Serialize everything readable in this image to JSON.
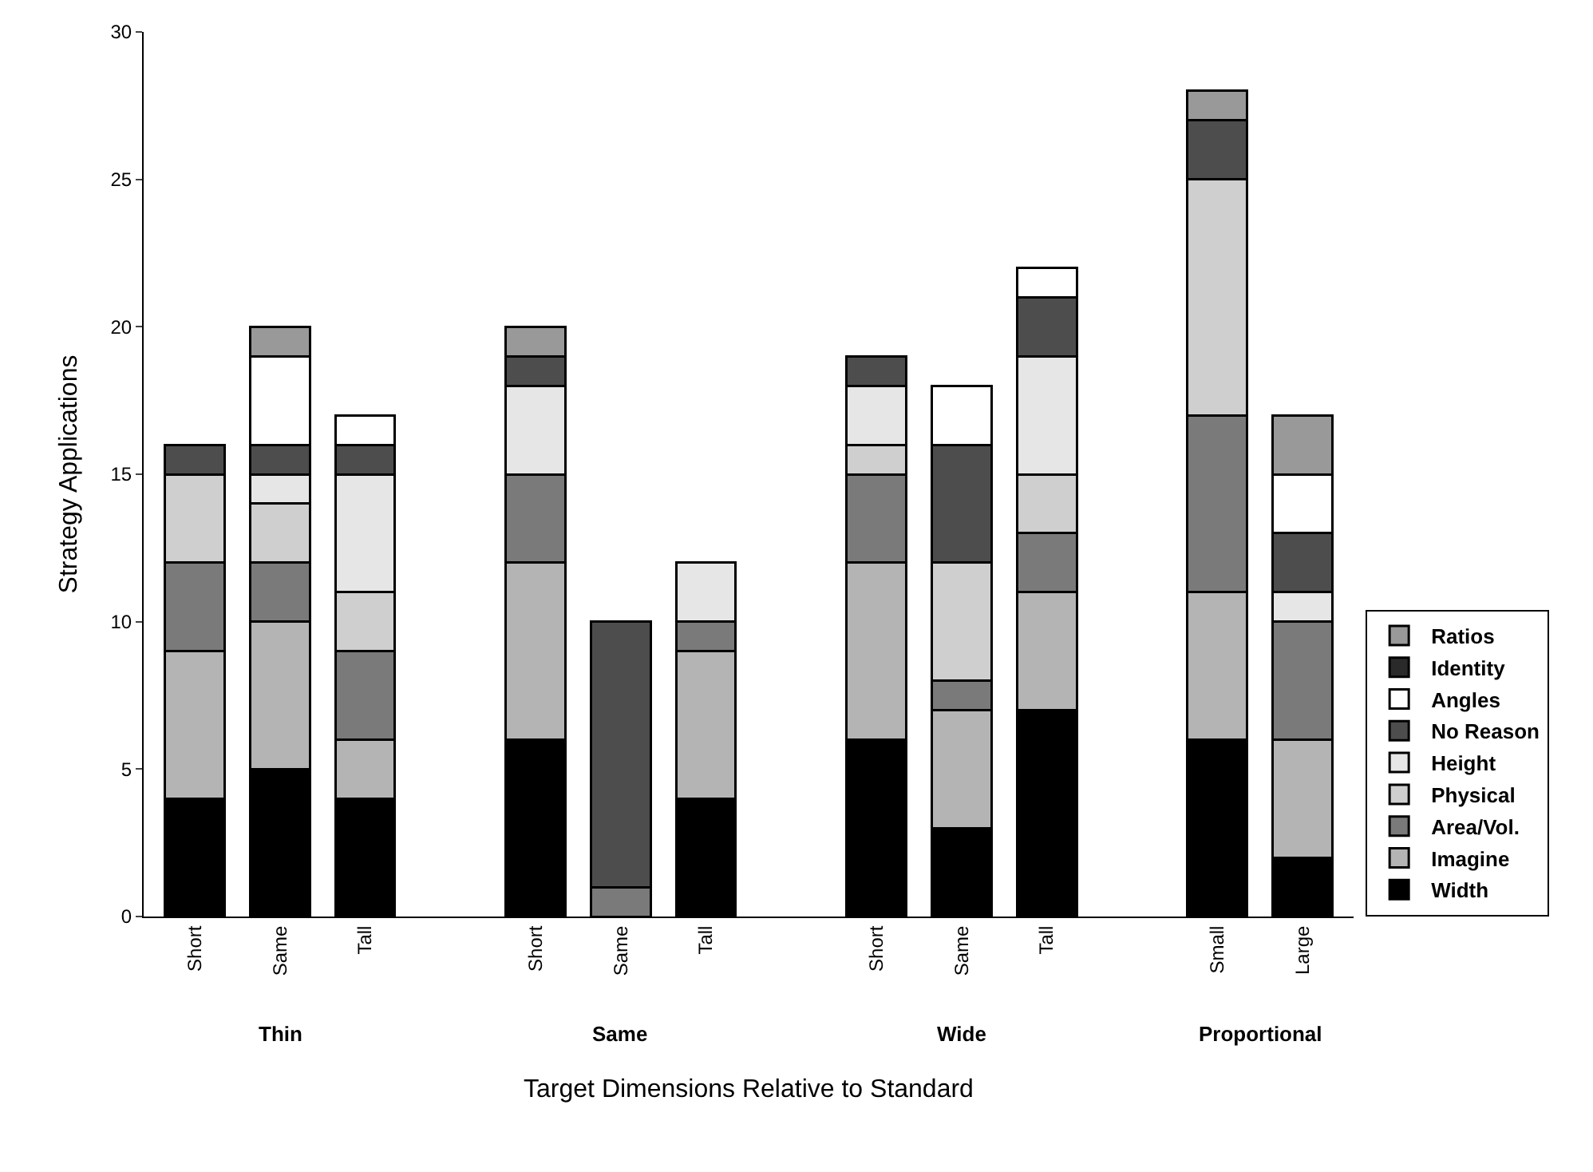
{
  "chart_data": {
    "type": "bar",
    "stacked": true,
    "ylabel": "Strategy Applications",
    "xlabel": "Target Dimensions Relative to Standard",
    "categories": [
      "Short",
      "Same",
      "Tall",
      null,
      "Short",
      "Same",
      "Tall",
      null,
      "Short",
      "Same",
      "Tall",
      null,
      "Small",
      "Large"
    ],
    "annotations": [
      "Thin",
      "Same",
      "Wide",
      "Proportional"
    ],
    "series": [
      {
        "name": "Width",
        "color": "#000000",
        "values": [
          4,
          5,
          4,
          null,
          6,
          0,
          4,
          null,
          6,
          3,
          7,
          null,
          6,
          2
        ]
      },
      {
        "name": "Imagine",
        "color": "#b4b4b4",
        "values": [
          5,
          5,
          2,
          null,
          6,
          0,
          5,
          null,
          6,
          4,
          4,
          null,
          5,
          4
        ]
      },
      {
        "name": "Area/Vol.",
        "color": "#7a7a7a",
        "values": [
          3,
          2,
          3,
          null,
          3,
          1,
          1,
          null,
          3,
          1,
          2,
          null,
          6,
          4
        ]
      },
      {
        "name": "Physical",
        "color": "#cfcfcf",
        "values": [
          3,
          2,
          2,
          null,
          0,
          0,
          0,
          null,
          1,
          4,
          2,
          null,
          8,
          0
        ]
      },
      {
        "name": "Height",
        "color": "#e6e6e6",
        "values": [
          0,
          1,
          4,
          null,
          3,
          0,
          2,
          null,
          2,
          0,
          4,
          null,
          0,
          1
        ]
      },
      {
        "name": "No Reason",
        "color": "#4d4d4d",
        "values": [
          1,
          1,
          1,
          null,
          1,
          9,
          0,
          null,
          1,
          4,
          2,
          null,
          2,
          2
        ]
      },
      {
        "name": "Angles",
        "color": "#ffffff",
        "values": [
          0,
          3,
          1,
          null,
          0,
          0,
          0,
          null,
          0,
          2,
          1,
          null,
          0,
          2
        ]
      },
      {
        "name": "Identity",
        "color": "#2a2a2a",
        "values": [
          0,
          0,
          0,
          null,
          0,
          0,
          0,
          null,
          0,
          0,
          0,
          null,
          0,
          0
        ]
      },
      {
        "name": "Ratios",
        "color": "#999999",
        "values": [
          0,
          1,
          0,
          null,
          1,
          0,
          0,
          null,
          0,
          0,
          0,
          null,
          1,
          2
        ]
      }
    ],
    "ylim": [
      0,
      30
    ],
    "yticks": [
      0,
      5,
      10,
      15,
      20,
      25,
      30
    ],
    "grid": false,
    "legend": "right"
  }
}
